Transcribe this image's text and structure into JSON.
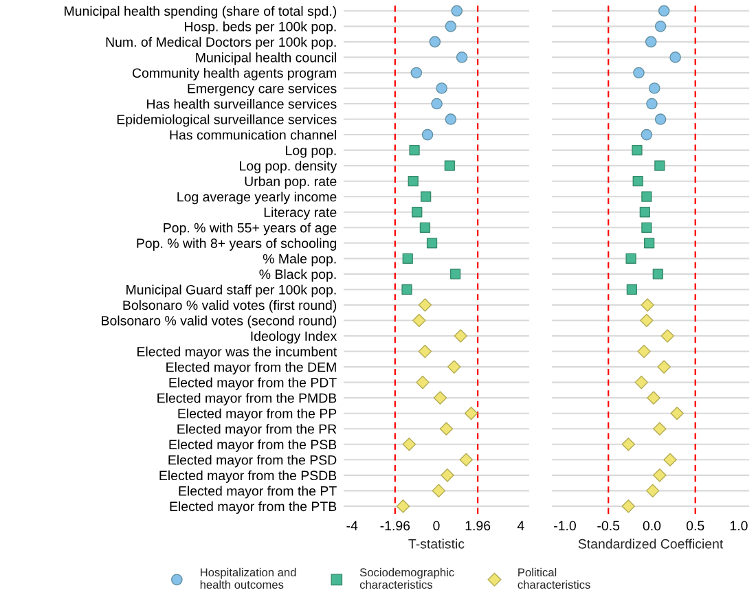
{
  "chart_data": [
    {
      "type": "scatter",
      "xlabel": "T-statistic",
      "categories": [
        "Municipal health spending (share of total spd.)",
        "Hosp. beds per 100k pop.",
        "Num. of Medical Doctors per 100k pop.",
        "Municipal health council",
        "Community health agents program",
        "Emergency care services",
        "Has health surveillance services",
        "Epidemiological surveillance services",
        "Has communication channel",
        "Log pop.",
        "Log pop. density",
        "Urban pop. rate",
        "Log average yearly income",
        "Literacy rate",
        "Pop. % with 55+ years of age",
        "Pop. % with 8+ years of schooling",
        "% Male pop.",
        "% Black pop.",
        "Municipal Guard staff per 100k pop.",
        "Bolsonaro % valid votes (first round)",
        "Bolsonaro % valid votes (second round)",
        "Ideology Index",
        "Elected mayor was the incumbent",
        "Elected mayor from the DEM",
        "Elected mayor from the PDT",
        "Elected mayor from the PMDB",
        "Elected mayor from the PP",
        "Elected mayor from the PR",
        "Elected mayor from the PSB",
        "Elected mayor from the PSD",
        "Elected mayor from the PSDB",
        "Elected mayor from the PT",
        "Elected mayor from the PTB"
      ],
      "orientation": "horizontal",
      "xlim": [
        -4.4,
        4.4
      ],
      "xticks": [
        -4,
        -1.96,
        0,
        1.96,
        4
      ],
      "grid": "y",
      "legend": "bottom",
      "ref_lines": [
        {
          "axis": "x",
          "value": -1.96,
          "color": "#ff0000",
          "line_style": "dashed"
        },
        {
          "axis": "x",
          "value": 1.96,
          "color": "#ff0000",
          "line_style": "dashed"
        }
      ],
      "series": [
        {
          "name": "Hospitalization and\nhealth outcomes",
          "color": "#85c1e9",
          "marker": "circle",
          "values": [
            0.97,
            0.68,
            -0.07,
            1.21,
            -0.95,
            0.25,
            0.02,
            0.68,
            -0.42,
            null,
            null,
            null,
            null,
            null,
            null,
            null,
            null,
            null,
            null,
            null,
            null,
            null,
            null,
            null,
            null,
            null,
            null,
            null,
            null,
            null,
            null,
            null,
            null
          ]
        },
        {
          "name": "Sociodemographic\ncharacteristics",
          "color": "#48b894",
          "marker": "square",
          "values": [
            null,
            null,
            null,
            null,
            null,
            null,
            null,
            null,
            null,
            -1.04,
            0.63,
            -1.1,
            -0.5,
            -0.92,
            -0.54,
            -0.21,
            -1.36,
            0.9,
            -1.4,
            null,
            null,
            null,
            null,
            null,
            null,
            null,
            null,
            null,
            null,
            null,
            null,
            null,
            null
          ]
        },
        {
          "name": "Political\ncharacteristics",
          "color": "#efe474",
          "marker": "diamond",
          "values": [
            null,
            null,
            null,
            null,
            null,
            null,
            null,
            null,
            null,
            null,
            null,
            null,
            null,
            null,
            null,
            null,
            null,
            null,
            null,
            -0.54,
            -0.82,
            1.15,
            -0.54,
            0.84,
            -0.65,
            0.18,
            1.65,
            0.47,
            -1.29,
            1.41,
            0.52,
            0.11,
            -1.58
          ]
        }
      ]
    },
    {
      "type": "scatter",
      "xlabel": "Standardized Coefficient",
      "categories": [
        "Municipal health spending (share of total spd.)",
        "Hosp. beds per 100k pop.",
        "Num. of Medical Doctors per 100k pop.",
        "Municipal health council",
        "Community health agents program",
        "Emergency care services",
        "Has health surveillance services",
        "Epidemiological surveillance services",
        "Has communication channel",
        "Log pop.",
        "Log pop. density",
        "Urban pop. rate",
        "Log average yearly income",
        "Literacy rate",
        "Pop. % with 55+ years of age",
        "Pop. % with 8+ years of schooling",
        "% Male pop.",
        "% Black pop.",
        "Municipal Guard staff per 100k pop.",
        "Bolsonaro % valid votes (first round)",
        "Bolsonaro % valid votes (second round)",
        "Ideology Index",
        "Elected mayor was the incumbent",
        "Elected mayor from the DEM",
        "Elected mayor from the PDT",
        "Elected mayor from the PMDB",
        "Elected mayor from the PP",
        "Elected mayor from the PR",
        "Elected mayor from the PSB",
        "Elected mayor from the PSD",
        "Elected mayor from the PSDB",
        "Elected mayor from the PT",
        "Elected mayor from the PTB"
      ],
      "orientation": "horizontal",
      "xlim": [
        -1.15,
        1.12
      ],
      "xticks": [
        {
          "value": -1,
          "label": "-1.0"
        },
        {
          "value": -0.5,
          "label": "-0.5"
        },
        {
          "value": 0,
          "label": "0.0"
        },
        {
          "value": 0.5,
          "label": "0.5"
        },
        {
          "value": 1,
          "label": "1.0"
        }
      ],
      "grid": "y",
      "tick_labels": "x",
      "legend": "bottom",
      "ref_lines": [
        {
          "axis": "x",
          "value": -0.5,
          "color": "#ff0000",
          "line_style": "dashed"
        },
        {
          "axis": "x",
          "value": 0.5,
          "color": "#ff0000",
          "line_style": "dashed"
        }
      ],
      "series": [
        {
          "name": "Hospitalization and\nhealth outcomes",
          "color": "#85c1e9",
          "marker": "circle",
          "values": [
            0.14,
            0.1,
            -0.01,
            0.27,
            -0.15,
            0.03,
            0.0,
            0.1,
            -0.06,
            null,
            null,
            null,
            null,
            null,
            null,
            null,
            null,
            null,
            null,
            null,
            null,
            null,
            null,
            null,
            null,
            null,
            null,
            null,
            null,
            null,
            null,
            null,
            null
          ]
        },
        {
          "name": "Sociodemographic\ncharacteristics",
          "color": "#48b894",
          "marker": "square",
          "values": [
            null,
            null,
            null,
            null,
            null,
            null,
            null,
            null,
            null,
            -0.17,
            0.09,
            -0.16,
            -0.06,
            -0.08,
            -0.06,
            -0.03,
            -0.24,
            0.07,
            -0.23,
            null,
            null,
            null,
            null,
            null,
            null,
            null,
            null,
            null,
            null,
            null,
            null,
            null,
            null
          ]
        },
        {
          "name": "Political\ncharacteristics",
          "color": "#efe474",
          "marker": "diamond",
          "values": [
            null,
            null,
            null,
            null,
            null,
            null,
            null,
            null,
            null,
            null,
            null,
            null,
            null,
            null,
            null,
            null,
            null,
            null,
            null,
            -0.05,
            -0.06,
            0.18,
            -0.09,
            0.14,
            -0.12,
            0.02,
            0.29,
            0.09,
            -0.27,
            0.21,
            0.09,
            0.01,
            -0.27
          ]
        }
      ]
    }
  ]
}
